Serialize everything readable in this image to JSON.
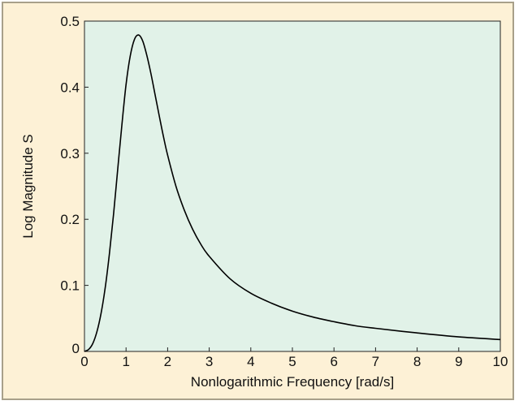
{
  "chart_data": {
    "type": "line",
    "title": "",
    "xlabel": "Nonlogarithmic Frequency [rad/s]",
    "ylabel": "Log Magnitude S",
    "xlim": [
      0,
      10
    ],
    "ylim": [
      0,
      0.5
    ],
    "x_ticks": [
      0,
      1,
      2,
      3,
      4,
      5,
      6,
      7,
      8,
      9,
      10
    ],
    "y_ticks": [
      0,
      0.1,
      0.2,
      0.3,
      0.4,
      0.5
    ],
    "x_tick_labels": [
      "0",
      "1",
      "2",
      "3",
      "4",
      "5",
      "6",
      "7",
      "8",
      "9",
      "10"
    ],
    "y_tick_labels": [
      "0",
      "0.1",
      "0.2",
      "0.3",
      "0.4",
      "0.5"
    ],
    "grid": false,
    "legend": "none",
    "series": [
      {
        "x": [
          0,
          0.1,
          0.2,
          0.3,
          0.4,
          0.5,
          0.6,
          0.7,
          0.8,
          0.9,
          1.0,
          1.1,
          1.2,
          1.3,
          1.4,
          1.5,
          1.6,
          1.7,
          1.8,
          1.9,
          2.0,
          2.2,
          2.4,
          2.6,
          2.8,
          3.0,
          3.5,
          4.0,
          4.5,
          5.0,
          5.5,
          6.0,
          6.5,
          7.0,
          8.0,
          9.0,
          10.0
        ],
        "y": [
          0,
          0.003,
          0.012,
          0.03,
          0.058,
          0.097,
          0.148,
          0.208,
          0.276,
          0.343,
          0.404,
          0.447,
          0.472,
          0.479,
          0.47,
          0.448,
          0.42,
          0.388,
          0.356,
          0.325,
          0.297,
          0.25,
          0.214,
          0.185,
          0.162,
          0.144,
          0.11,
          0.088,
          0.073,
          0.061,
          0.052,
          0.045,
          0.039,
          0.035,
          0.028,
          0.022,
          0.018
        ]
      }
    ]
  },
  "colors": {
    "background": "#fdf1d6",
    "plot_area": "#e1f2e8",
    "frame_border": "#a8a08a",
    "line": "#000000"
  }
}
